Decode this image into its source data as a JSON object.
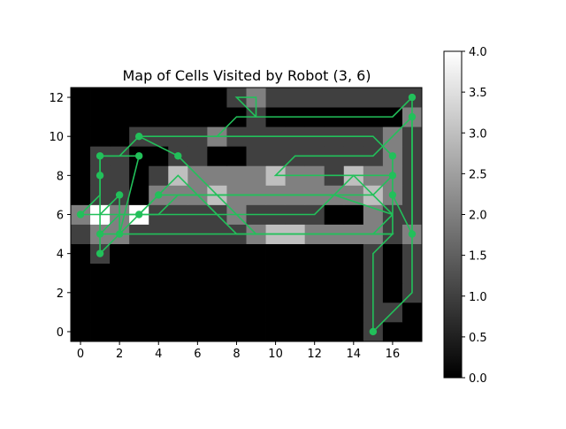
{
  "chart_data": {
    "type": "heatmap",
    "title": "Map of Cells Visited by Robot (3, 6)",
    "xlabel": "",
    "ylabel": "",
    "xlim": [
      -0.5,
      17.5
    ],
    "ylim": [
      -0.5,
      12.5
    ],
    "x_ticks": [
      0,
      2,
      4,
      6,
      8,
      10,
      12,
      14,
      16
    ],
    "y_ticks": [
      0,
      2,
      4,
      6,
      8,
      10,
      12
    ],
    "colorbar": {
      "min": 0.0,
      "max": 4.0,
      "ticks": [
        "0.0",
        "0.5",
        "1.0",
        "1.5",
        "2.0",
        "2.5",
        "3.0",
        "3.5",
        "4.0"
      ]
    },
    "colormap": "gray",
    "grid": false,
    "cells": [
      [
        0,
        0,
        0,
        0,
        0,
        0,
        0,
        0,
        0,
        0,
        0,
        0,
        0,
        0,
        0,
        1,
        0,
        0
      ],
      [
        0,
        0,
        0,
        0,
        0,
        0,
        0,
        0,
        0,
        0,
        0,
        0,
        0,
        0,
        0,
        1,
        1,
        0
      ],
      [
        0,
        0,
        0,
        0,
        0,
        0,
        0,
        0,
        0,
        0,
        0,
        0,
        0,
        0,
        0,
        1,
        0,
        1
      ],
      [
        0,
        0,
        0,
        0,
        0,
        0,
        0,
        0,
        0,
        0,
        0,
        0,
        0,
        0,
        0,
        1,
        0,
        1
      ],
      [
        0,
        1,
        0,
        0,
        0,
        0,
        0,
        0,
        0,
        0,
        0,
        0,
        0,
        0,
        0,
        1,
        0,
        1
      ],
      [
        1,
        2,
        2,
        1,
        1,
        1,
        1,
        1,
        1,
        2,
        3,
        3,
        2,
        2,
        2,
        2,
        1,
        2
      ],
      [
        2,
        4,
        2,
        4,
        1,
        1,
        1,
        1,
        2,
        1,
        1,
        1,
        1,
        0,
        0,
        2,
        1,
        1
      ],
      [
        0,
        1,
        1,
        0,
        2,
        2,
        2,
        3,
        2,
        2,
        2,
        2,
        2,
        2,
        2,
        3,
        2,
        1
      ],
      [
        0,
        1,
        1,
        0,
        1,
        3,
        2,
        2,
        2,
        2,
        3,
        2,
        2,
        1,
        3,
        2,
        2,
        1
      ],
      [
        0,
        1,
        1,
        0,
        0,
        1,
        1,
        0,
        0,
        1,
        1,
        1,
        1,
        1,
        1,
        1,
        2,
        1
      ],
      [
        0,
        0,
        0,
        1,
        1,
        1,
        1,
        2,
        1,
        1,
        1,
        1,
        1,
        1,
        1,
        1,
        2,
        1
      ],
      [
        0,
        0,
        0,
        0,
        0,
        0,
        0,
        0,
        0,
        1,
        0,
        0,
        0,
        0,
        0,
        0,
        0,
        2
      ],
      [
        0,
        0,
        0,
        0,
        0,
        0,
        0,
        0,
        1,
        2,
        1,
        1,
        1,
        1,
        1,
        1,
        1,
        1
      ]
    ],
    "path_color": "#22c05a",
    "path": [
      [
        15,
        0
      ],
      [
        17,
        2
      ],
      [
        17,
        11
      ],
      [
        15,
        9
      ],
      [
        11,
        9
      ],
      [
        10,
        8
      ],
      [
        16,
        8
      ],
      [
        15,
        7
      ],
      [
        5,
        7
      ],
      [
        4,
        6
      ],
      [
        2,
        6
      ],
      [
        1,
        5
      ],
      [
        2,
        5
      ],
      [
        16,
        5
      ],
      [
        15,
        4
      ],
      [
        15,
        0
      ]
    ],
    "path2": [
      [
        0,
        6
      ],
      [
        1,
        6
      ],
      [
        1,
        4
      ],
      [
        2,
        5
      ],
      [
        3,
        6
      ],
      [
        5,
        8
      ],
      [
        7,
        6
      ],
      [
        8,
        5
      ],
      [
        15,
        5
      ],
      [
        16,
        6
      ],
      [
        16,
        7
      ],
      [
        17,
        5
      ],
      [
        17,
        12
      ],
      [
        16,
        11
      ],
      [
        9,
        11
      ],
      [
        8,
        12
      ],
      [
        9,
        12
      ],
      [
        9,
        11
      ],
      [
        8,
        11
      ],
      [
        7,
        10
      ],
      [
        3,
        10
      ],
      [
        5,
        9
      ],
      [
        9,
        5
      ],
      [
        16,
        5
      ],
      [
        16,
        9
      ],
      [
        15,
        10
      ],
      [
        3,
        10
      ],
      [
        2,
        9
      ],
      [
        1,
        9
      ],
      [
        1,
        7
      ],
      [
        0,
        6
      ]
    ],
    "path3": [
      [
        1,
        6
      ],
      [
        2,
        7
      ],
      [
        2,
        5
      ],
      [
        3,
        9
      ],
      [
        1,
        9
      ],
      [
        1,
        8
      ],
      [
        1,
        6
      ],
      [
        2,
        6
      ],
      [
        12,
        6
      ],
      [
        14,
        8
      ],
      [
        16,
        6
      ],
      [
        13,
        7
      ],
      [
        4,
        7
      ],
      [
        3,
        6
      ],
      [
        1,
        6
      ]
    ],
    "markers": [
      [
        15,
        0
      ],
      [
        1,
        4
      ],
      [
        1,
        5
      ],
      [
        2,
        5
      ],
      [
        0,
        6
      ],
      [
        3,
        6
      ],
      [
        2,
        7
      ],
      [
        1,
        8
      ],
      [
        1,
        9
      ],
      [
        3,
        9
      ],
      [
        4,
        7
      ],
      [
        5,
        9
      ],
      [
        3,
        10
      ],
      [
        16,
        9
      ],
      [
        16,
        8
      ],
      [
        16,
        7
      ],
      [
        17,
        5
      ],
      [
        17,
        11
      ],
      [
        17,
        12
      ]
    ]
  }
}
